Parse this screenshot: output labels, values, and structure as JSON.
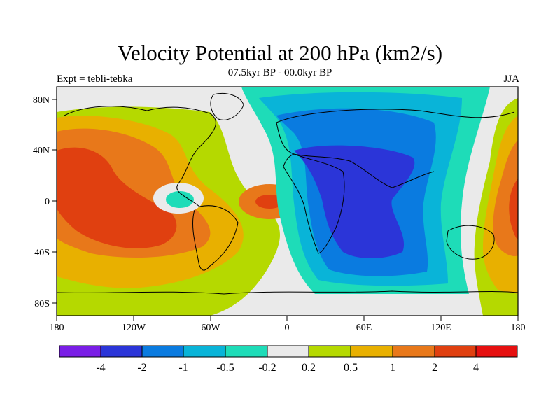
{
  "title": "Velocity Potential at 200 hPa (km2/s)",
  "subtitle": "07.5kyr BP - 00.0kyr BP",
  "left_label": "Expt = tebli-tebka",
  "right_label": "JJA",
  "map": {
    "projection": "equirectangular",
    "lon_range": [
      -180,
      180
    ],
    "lat_range": [
      -90,
      90
    ],
    "coastlines": true,
    "lat_ticks": [
      "80N",
      "40N",
      "0",
      "40S",
      "80S"
    ],
    "lon_ticks": [
      "180",
      "120W",
      "60W",
      "0",
      "60E",
      "120E",
      "180"
    ],
    "fill_colors": [
      "#7a1ee6",
      "#2b35d8",
      "#0a7be0",
      "#09b4d8",
      "#1edcb8",
      "#eaeaea",
      "#b5d900",
      "#e8b000",
      "#e8781a",
      "#e04010",
      "#e61010"
    ]
  },
  "colorbar": {
    "labels": [
      "-4",
      "-2",
      "-1",
      "-0.5",
      "-0.2",
      "0.2",
      "0.5",
      "1",
      "2",
      "4"
    ]
  }
}
